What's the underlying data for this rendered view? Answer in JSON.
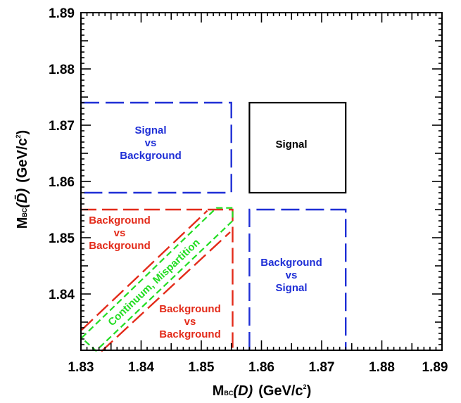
{
  "axes": {
    "x": {
      "title_main": "M",
      "title_sub": "BC",
      "title_var": "(D)",
      "title_units": "(GeV/c",
      "title_sup": "2",
      "title_close": ")",
      "ticks": [
        "1.83",
        "1.84",
        "1.85",
        "1.86",
        "1.87",
        "1.88",
        "1.89"
      ],
      "tick_values": [
        1.83,
        1.84,
        1.85,
        1.86,
        1.87,
        1.88,
        1.89
      ],
      "range": [
        1.83,
        1.89
      ]
    },
    "y": {
      "title_main": "M",
      "title_sub": "BC",
      "title_var": "(D̄)",
      "title_units": "(GeV/c",
      "title_sup": "2",
      "title_close": ")",
      "ticks": [
        "1.84",
        "1.85",
        "1.86",
        "1.87",
        "1.88",
        "1.89"
      ],
      "tick_values": [
        1.84,
        1.85,
        1.86,
        1.87,
        1.88,
        1.89
      ],
      "range": [
        1.83,
        1.89
      ]
    }
  },
  "regions": {
    "signal": {
      "label": "Signal",
      "color": "#000000",
      "x": [
        1.858,
        1.874
      ],
      "y": [
        1.858,
        1.874
      ]
    },
    "signal_vs_background": {
      "label_lines": [
        "Signal",
        "vs",
        "Background"
      ],
      "color": "#1f2fd6",
      "x": [
        1.83,
        1.855
      ],
      "y": [
        1.858,
        1.874
      ]
    },
    "background_vs_signal": {
      "label_lines": [
        "Background",
        "vs",
        "Signal"
      ],
      "color": "#1f2fd6",
      "x": [
        1.858,
        1.874
      ],
      "y": [
        1.83,
        1.855
      ]
    },
    "background_vs_background_upper": {
      "label_lines": [
        "Background",
        "vs",
        "Background"
      ],
      "color": "#e32b1a"
    },
    "background_vs_background_lower": {
      "label_lines": [
        "Background",
        "vs",
        "Background"
      ],
      "color": "#e32b1a"
    },
    "continuum_mispartition": {
      "label": "Continuum, Mispartition",
      "color": "#22dd22"
    }
  }
}
